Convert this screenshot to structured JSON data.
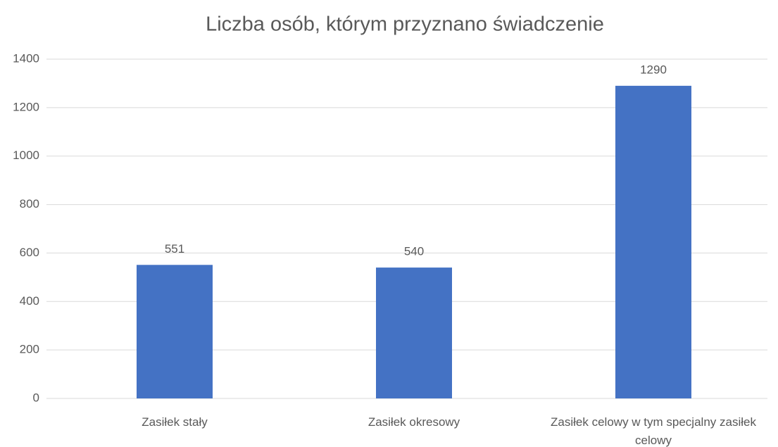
{
  "chart_data": {
    "type": "bar",
    "title": "Liczba osób, którym przyznano świadczenie",
    "categories": [
      "Zasiłek stały",
      "Zasiłek okresowy",
      "Zasiłek celowy w tym specjalny zasiłek celowy"
    ],
    "values": [
      551,
      540,
      1290
    ],
    "color": "#4472c4",
    "ylim": [
      0,
      1400
    ],
    "yticks": [
      0,
      200,
      400,
      600,
      800,
      1000,
      1200,
      1400
    ],
    "grid": true
  }
}
